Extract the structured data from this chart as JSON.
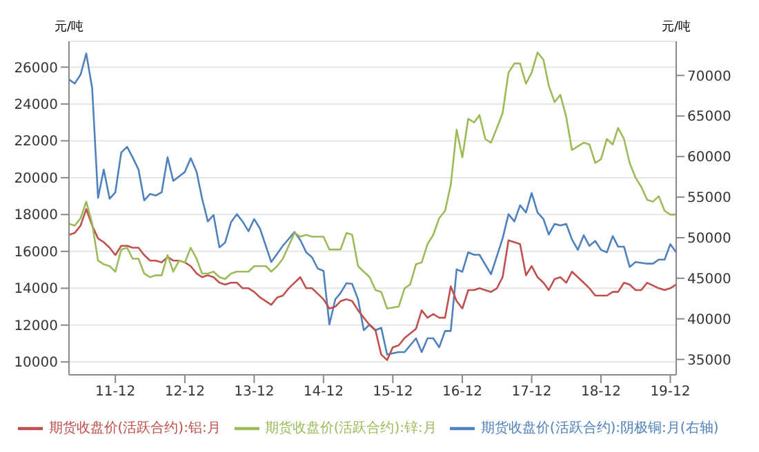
{
  "chart_data": {
    "type": "line",
    "ylabel": "元/吨",
    "y2label": "元/吨",
    "xlim": [
      "2011-04",
      "2020-01"
    ],
    "xticks": [
      {
        "value": "2011-12",
        "label": "11-12"
      },
      {
        "value": "2012-12",
        "label": "12-12"
      },
      {
        "value": "2013-12",
        "label": "13-12"
      },
      {
        "value": "2014-12",
        "label": "14-12"
      },
      {
        "value": "2015-12",
        "label": "15-12"
      },
      {
        "value": "2016-12",
        "label": "16-12"
      },
      {
        "value": "2017-12",
        "label": "17-12"
      },
      {
        "value": "2018-12",
        "label": "18-12"
      },
      {
        "value": "2019-12",
        "label": "19-12"
      }
    ],
    "ylim": [
      9300,
      27400
    ],
    "yticks": [
      10000,
      12000,
      14000,
      16000,
      18000,
      20000,
      22000,
      24000,
      26000
    ],
    "y2lim": [
      33100,
      74200
    ],
    "y2ticks": [
      35000,
      40000,
      45000,
      50000,
      55000,
      60000,
      65000,
      70000
    ],
    "grid": "y",
    "legend": "bottom",
    "marker": "none",
    "line_style": "solid",
    "series": [
      {
        "name": "期货收盘价(活跃合约):阴极铜:月(右轴)",
        "color": "#4f81bd",
        "axis": "y2",
        "x": [
          "2011-04",
          "2011-05",
          "2011-06",
          "2011-07",
          "2011-08",
          "2011-09",
          "2011-10",
          "2011-11",
          "2011-12",
          "2012-01",
          "2012-02",
          "2012-03",
          "2012-04",
          "2012-05",
          "2012-06",
          "2012-07",
          "2012-08",
          "2012-09",
          "2012-10",
          "2012-12",
          "2013-01",
          "2013-02",
          "2013-03",
          "2013-04",
          "2013-05",
          "2013-06",
          "2013-07",
          "2013-08",
          "2013-09",
          "2013-10",
          "2013-11",
          "2013-12",
          "2014-01",
          "2014-03",
          "2014-05",
          "2014-07",
          "2014-08",
          "2014-09",
          "2014-10",
          "2014-11",
          "2014-12",
          "2015-01",
          "2015-02",
          "2015-03",
          "2015-04",
          "2015-05",
          "2015-06",
          "2015-07",
          "2015-08",
          "2015-09",
          "2015-10",
          "2015-11",
          "2016-01",
          "2016-02",
          "2016-04",
          "2016-05",
          "2016-06",
          "2016-07",
          "2016-08",
          "2016-09",
          "2016-10",
          "2016-11",
          "2016-12",
          "2017-01",
          "2017-02",
          "2017-03",
          "2017-05",
          "2017-07",
          "2017-08",
          "2017-09",
          "2017-10",
          "2017-11",
          "2017-12",
          "2018-01",
          "2018-02",
          "2018-03",
          "2018-04",
          "2018-05",
          "2018-06",
          "2018-07",
          "2018-08",
          "2018-09",
          "2018-10",
          "2018-11",
          "2018-12",
          "2019-01",
          "2019-02",
          "2019-03",
          "2019-04",
          "2019-05",
          "2019-06",
          "2019-08",
          "2019-09",
          "2019-10",
          "2019-11",
          "2019-12",
          "2020-01"
        ],
        "values": [
          69500,
          69000,
          70100,
          72700,
          68400,
          54900,
          58400,
          54800,
          55600,
          60500,
          61200,
          59900,
          58400,
          54600,
          55400,
          55200,
          55600,
          59900,
          57000,
          58100,
          59800,
          58100,
          54900,
          52000,
          52800,
          48800,
          49400,
          51900,
          52900,
          52000,
          50800,
          52300,
          51100,
          47000,
          49000,
          50700,
          49700,
          48200,
          47600,
          46200,
          45900,
          39300,
          42400,
          43200,
          44400,
          44300,
          42400,
          38600,
          39300,
          38600,
          38900,
          35600,
          35900,
          35900,
          37600,
          35900,
          37600,
          37600,
          36500,
          38500,
          38500,
          46100,
          45800,
          48200,
          47900,
          47900,
          45500,
          49900,
          52900,
          52000,
          54000,
          53100,
          55500,
          53100,
          52300,
          50400,
          51700,
          51500,
          51700,
          49800,
          48500,
          50300,
          49000,
          49600,
          48500,
          48200,
          50200,
          48900,
          48900,
          46400,
          47000,
          46800,
          46800,
          47300,
          47300,
          49200,
          48200
        ]
      },
      {
        "name": "期货收盘价(活跃合约):铝:月",
        "color": "#c0504d",
        "x": [
          "2011-04",
          "2011-05",
          "2011-06",
          "2011-07",
          "2011-08",
          "2011-09",
          "2011-10",
          "2011-11",
          "2011-12",
          "2012-01",
          "2012-02",
          "2012-03",
          "2012-04",
          "2012-05",
          "2012-06",
          "2012-07",
          "2012-08",
          "2012-09",
          "2012-10",
          "2012-11",
          "2012-12",
          "2013-01",
          "2013-02",
          "2013-03",
          "2013-04",
          "2013-05",
          "2013-06",
          "2013-07",
          "2013-08",
          "2013-09",
          "2013-10",
          "2013-11",
          "2013-12",
          "2014-01",
          "2014-03",
          "2014-04",
          "2014-05",
          "2014-06",
          "2014-08",
          "2014-09",
          "2014-10",
          "2014-11",
          "2014-12",
          "2015-01",
          "2015-02",
          "2015-03",
          "2015-04",
          "2015-05",
          "2015-06",
          "2015-07",
          "2015-08",
          "2015-09",
          "2015-10",
          "2015-11",
          "2015-12",
          "2016-01",
          "2016-02",
          "2016-04",
          "2016-05",
          "2016-06",
          "2016-07",
          "2016-08",
          "2016-09",
          "2016-10",
          "2016-11",
          "2016-12",
          "2017-01",
          "2017-02",
          "2017-03",
          "2017-05",
          "2017-06",
          "2017-07",
          "2017-08",
          "2017-09",
          "2017-10",
          "2017-11",
          "2017-12",
          "2018-01",
          "2018-02",
          "2018-03",
          "2018-04",
          "2018-05",
          "2018-06",
          "2018-07",
          "2018-09",
          "2018-10",
          "2018-11",
          "2018-12",
          "2019-01",
          "2019-02",
          "2019-03",
          "2019-04",
          "2019-05",
          "2019-06",
          "2019-07",
          "2019-08",
          "2019-10",
          "2019-11",
          "2019-12",
          "2020-01"
        ],
        "values": [
          16900,
          17000,
          17400,
          18300,
          17400,
          16700,
          16500,
          16200,
          15800,
          16300,
          16300,
          16200,
          16200,
          15800,
          15500,
          15500,
          15400,
          15700,
          15500,
          15500,
          15400,
          15200,
          14800,
          14600,
          14700,
          14600,
          14300,
          14200,
          14300,
          14300,
          14000,
          14000,
          13800,
          13500,
          13100,
          13500,
          13600,
          14000,
          14600,
          14000,
          14000,
          13700,
          13400,
          12900,
          13000,
          13300,
          13400,
          13300,
          12800,
          12400,
          12000,
          11700,
          10400,
          10100,
          10800,
          10900,
          11300,
          11800,
          12800,
          12400,
          12600,
          12400,
          12400,
          14100,
          13300,
          12900,
          13900,
          13900,
          14000,
          13800,
          14000,
          14600,
          16600,
          16500,
          16400,
          14700,
          15200,
          14600,
          14300,
          13900,
          14500,
          14600,
          14300,
          14900,
          14300,
          14000,
          13600,
          13600,
          13600,
          13800,
          13800,
          14300,
          14200,
          13900,
          13900,
          14300,
          14000,
          13900,
          14000,
          14200
        ]
      },
      {
        "name": "期货收盘价(活跃合约):锌:月",
        "color": "#9bbb59",
        "x": [
          "2011-04",
          "2011-05",
          "2011-06",
          "2011-07",
          "2011-08",
          "2011-09",
          "2011-10",
          "2011-11",
          "2011-12",
          "2012-01",
          "2012-02",
          "2012-03",
          "2012-04",
          "2012-05",
          "2012-06",
          "2012-07",
          "2012-08",
          "2012-09",
          "2012-10",
          "2012-11",
          "2012-12",
          "2013-01",
          "2013-02",
          "2013-03",
          "2013-04",
          "2013-05",
          "2013-06",
          "2013-07",
          "2013-08",
          "2013-09",
          "2013-10",
          "2013-11",
          "2013-12",
          "2014-01",
          "2014-02",
          "2014-03",
          "2014-04",
          "2014-05",
          "2014-07",
          "2014-08",
          "2014-09",
          "2014-10",
          "2014-12",
          "2015-01",
          "2015-02",
          "2015-03",
          "2015-04",
          "2015-05",
          "2015-06",
          "2015-07",
          "2015-08",
          "2015-09",
          "2015-10",
          "2015-11",
          "2016-01",
          "2016-02",
          "2016-03",
          "2016-04",
          "2016-05",
          "2016-06",
          "2016-07",
          "2016-08",
          "2016-09",
          "2016-10",
          "2016-11",
          "2016-12",
          "2017-01",
          "2017-02",
          "2017-03",
          "2017-04",
          "2017-05",
          "2017-06",
          "2017-07",
          "2017-08",
          "2017-09",
          "2017-10",
          "2017-11",
          "2017-12",
          "2018-01",
          "2018-02",
          "2018-03",
          "2018-04",
          "2018-05",
          "2018-06",
          "2018-07",
          "2018-08",
          "2018-09",
          "2018-10",
          "2018-11",
          "2018-12",
          "2019-01",
          "2019-02",
          "2019-03",
          "2019-04",
          "2019-05",
          "2019-06",
          "2019-07",
          "2019-08",
          "2019-09",
          "2019-10",
          "2019-11",
          "2019-12",
          "2020-01"
        ],
        "values": [
          17500,
          17400,
          17800,
          18700,
          17500,
          15500,
          15300,
          15200,
          14900,
          16100,
          16200,
          15600,
          15600,
          14800,
          14600,
          14700,
          14700,
          15800,
          14900,
          15500,
          15400,
          16200,
          15600,
          14800,
          14800,
          14900,
          14600,
          14500,
          14800,
          14900,
          14900,
          14900,
          15200,
          15200,
          15200,
          14900,
          15200,
          15600,
          17000,
          16800,
          16900,
          16800,
          16800,
          16100,
          16100,
          16100,
          17000,
          16900,
          15200,
          14900,
          14600,
          13900,
          13800,
          12900,
          13000,
          14000,
          14200,
          15300,
          15400,
          16400,
          16900,
          17800,
          18200,
          19600,
          22600,
          21100,
          23200,
          23000,
          23400,
          22100,
          21900,
          22700,
          23500,
          25700,
          26200,
          26200,
          25100,
          25700,
          26800,
          26400,
          25000,
          24100,
          24500,
          23300,
          21500,
          21700,
          21900,
          21800,
          20800,
          21000,
          22100,
          21800,
          22700,
          22100,
          20800,
          20000,
          19500,
          18800,
          18700,
          19000,
          18200,
          18000,
          18000
        ]
      }
    ]
  }
}
